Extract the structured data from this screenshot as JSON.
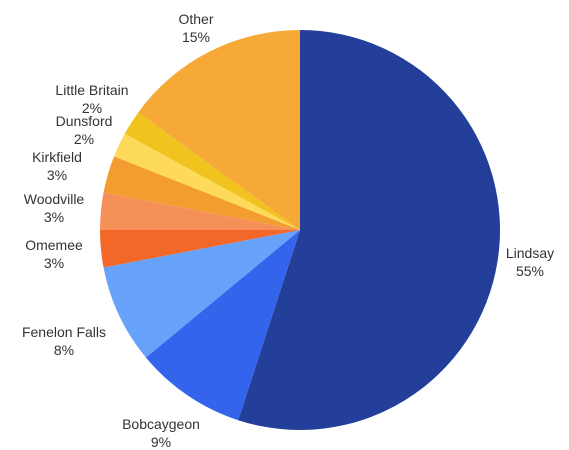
{
  "chart_data": {
    "type": "pie",
    "title": "",
    "start_angle_deg": 0,
    "direction": "clockwise",
    "slices": [
      {
        "label": "Lindsay",
        "value": 55,
        "percent_label": "55%",
        "color": "#233F99"
      },
      {
        "label": "Bobcaygeon",
        "value": 9,
        "percent_label": "9%",
        "color": "#3463EC"
      },
      {
        "label": "Fenelon Falls",
        "value": 8,
        "percent_label": "8%",
        "color": "#66A2FA"
      },
      {
        "label": "Omemee",
        "value": 3,
        "percent_label": "3%",
        "color": "#F36729"
      },
      {
        "label": "Woodville",
        "value": 3,
        "percent_label": "3%",
        "color": "#F69059"
      },
      {
        "label": "Kirkfield",
        "value": 3,
        "percent_label": "3%",
        "color": "#F39C2F"
      },
      {
        "label": "Dunsford",
        "value": 2,
        "percent_label": "2%",
        "color": "#FDDA5A"
      },
      {
        "label": "Little Britain",
        "value": 2,
        "percent_label": "2%",
        "color": "#F1C31E"
      },
      {
        "label": "Other",
        "value": 15,
        "percent_label": "15%",
        "color": "#F7A937"
      }
    ]
  }
}
